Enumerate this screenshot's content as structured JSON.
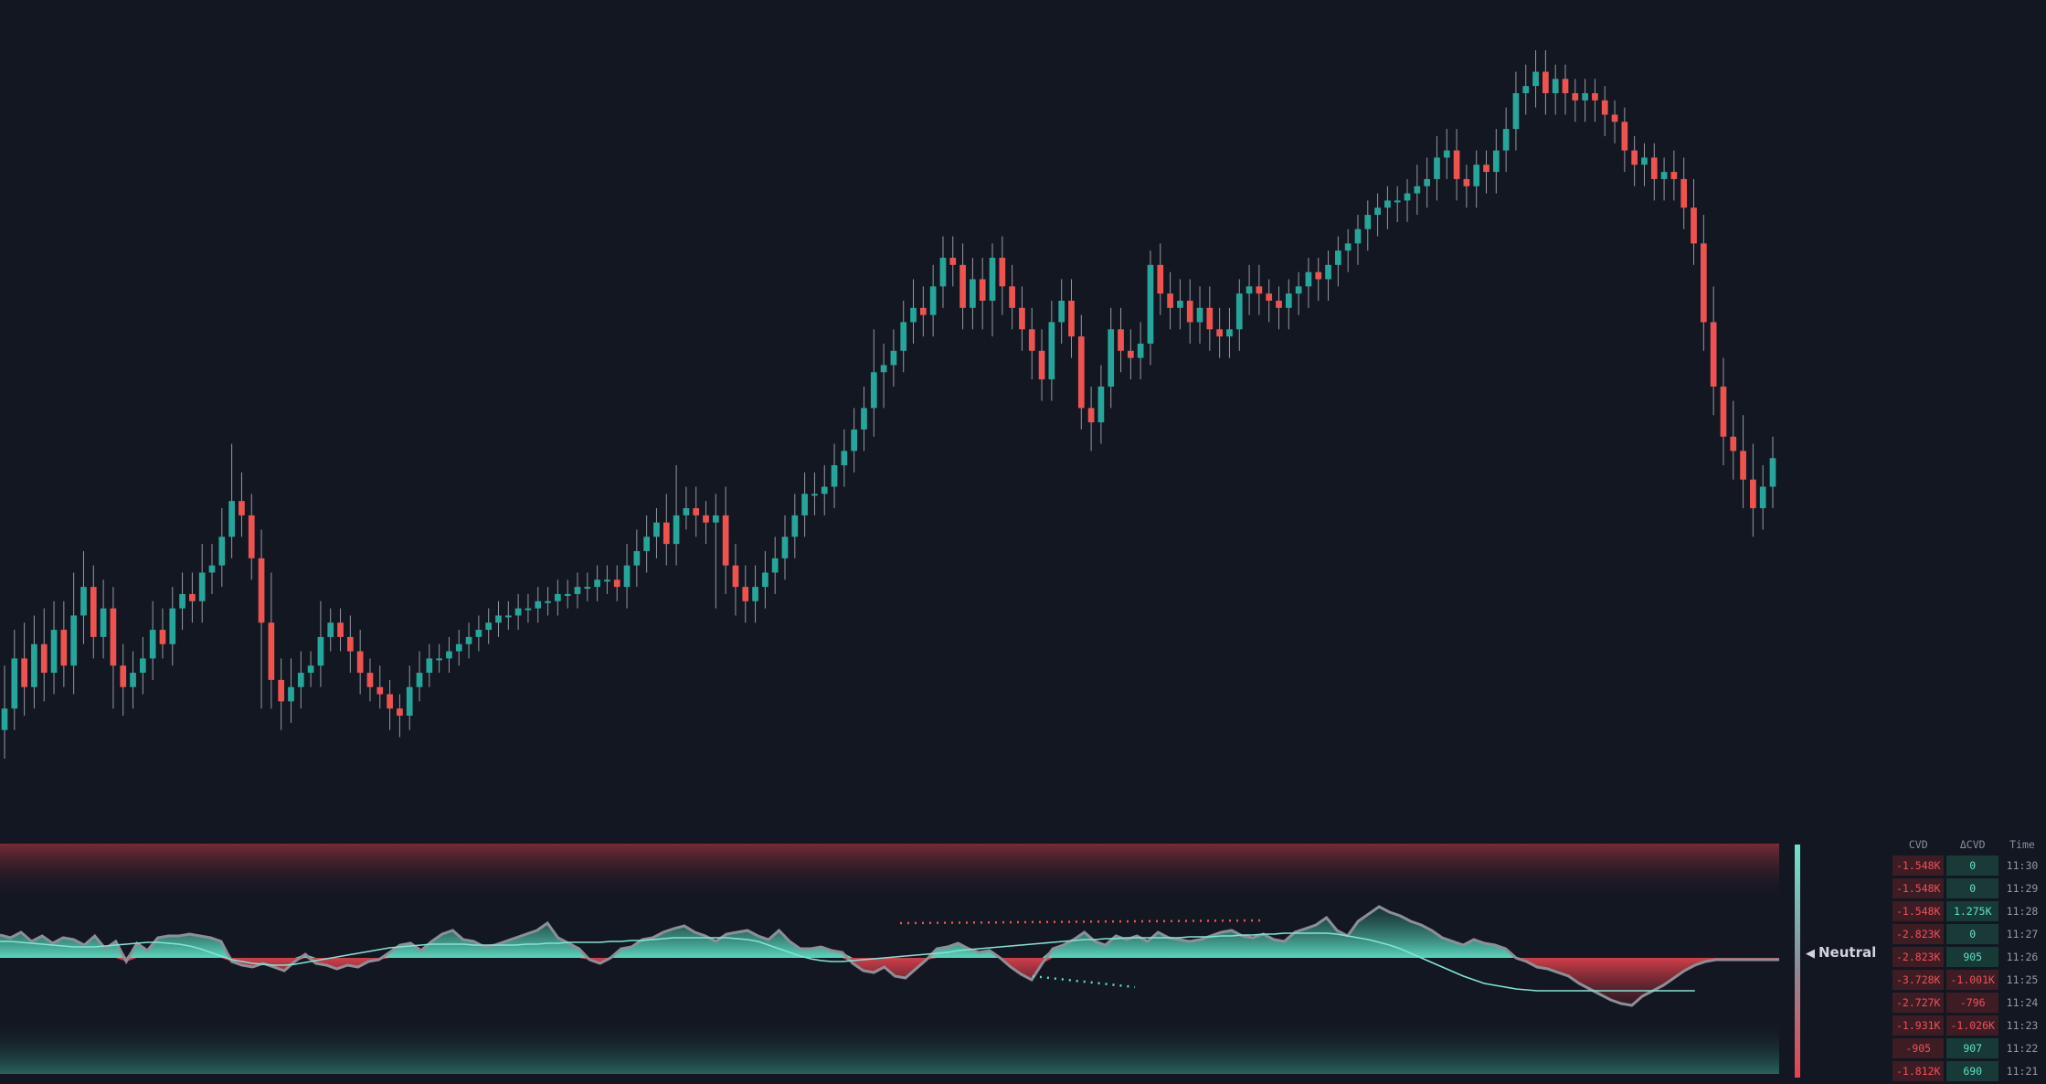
{
  "colors": {
    "background": "#131722",
    "up": "#26a69a",
    "down": "#ef5350",
    "wick": "#9598a1",
    "osc_line": "#8d8f97",
    "signal_line": "#7fe6d3",
    "bull_fill": "#5fe0c6",
    "bear_fill": "#e8424f"
  },
  "indicator": {
    "sentiment_label": "Neutral",
    "sentiment_arrow": "◀"
  },
  "table": {
    "headers": {
      "cvd": "CVD",
      "dcvd": "ΔCVD",
      "time": "Time"
    },
    "rows": [
      {
        "cvd": "-1.548K",
        "dcvd": "0",
        "time": "11:30",
        "cvd_sign": "neg",
        "dcvd_sign": "zero"
      },
      {
        "cvd": "-1.548K",
        "dcvd": "0",
        "time": "11:29",
        "cvd_sign": "neg",
        "dcvd_sign": "zero"
      },
      {
        "cvd": "-1.548K",
        "dcvd": "1.275K",
        "time": "11:28",
        "cvd_sign": "neg",
        "dcvd_sign": "pos"
      },
      {
        "cvd": "-2.823K",
        "dcvd": "0",
        "time": "11:27",
        "cvd_sign": "neg",
        "dcvd_sign": "zero"
      },
      {
        "cvd": "-2.823K",
        "dcvd": "905",
        "time": "11:26",
        "cvd_sign": "neg",
        "dcvd_sign": "pos"
      },
      {
        "cvd": "-3.728K",
        "dcvd": "-1.001K",
        "time": "11:25",
        "cvd_sign": "neg",
        "dcvd_sign": "neg"
      },
      {
        "cvd": "-2.727K",
        "dcvd": "-796",
        "time": "11:24",
        "cvd_sign": "neg",
        "dcvd_sign": "neg"
      },
      {
        "cvd": "-1.931K",
        "dcvd": "-1.026K",
        "time": "11:23",
        "cvd_sign": "neg",
        "dcvd_sign": "neg"
      },
      {
        "cvd": "-905",
        "dcvd": "907",
        "time": "11:22",
        "cvd_sign": "neg",
        "dcvd_sign": "pos"
      },
      {
        "cvd": "-1.812K",
        "dcvd": "690",
        "time": "11:21",
        "cvd_sign": "neg",
        "dcvd_sign": "pos"
      }
    ]
  },
  "chart_data": [
    {
      "type": "candlestick",
      "title": "",
      "grid": false,
      "ylim": [
        0,
        100
      ],
      "close": [
        30,
        37,
        33,
        39,
        35,
        41,
        36,
        43,
        47,
        40,
        44,
        36,
        33,
        35,
        37,
        41,
        39,
        44,
        46,
        45,
        49,
        50,
        54,
        59,
        57,
        51,
        42,
        34,
        31,
        33,
        35,
        36,
        40,
        42,
        40,
        38,
        35,
        33,
        32,
        30,
        29,
        33,
        35,
        37,
        37,
        38,
        39,
        40,
        41,
        42,
        43,
        43,
        44,
        44,
        45,
        45,
        46,
        46,
        47,
        47,
        48,
        48,
        47,
        50,
        52,
        54,
        56,
        53,
        57,
        58,
        57,
        56,
        57,
        50,
        47,
        45,
        47,
        49,
        51,
        54,
        57,
        60,
        60,
        61,
        64,
        66,
        69,
        72,
        77,
        78,
        80,
        84,
        86,
        85,
        89,
        93,
        92,
        86,
        90,
        87,
        93,
        89,
        86,
        83,
        80,
        76,
        84,
        87,
        82,
        72,
        70,
        75,
        83,
        80,
        79,
        81,
        92,
        88,
        86,
        87,
        84,
        86,
        83,
        82,
        83,
        88,
        89,
        88,
        87,
        86,
        88,
        89,
        91,
        90,
        92,
        94,
        95,
        97,
        99,
        100,
        101,
        101,
        102,
        103,
        104,
        107,
        108,
        104,
        103,
        106,
        105,
        108,
        111,
        116,
        117,
        119,
        116,
        118,
        116,
        115,
        116,
        115,
        113,
        112,
        108,
        106,
        107,
        104,
        105,
        104,
        100,
        95,
        84,
        75,
        68,
        66,
        62,
        58,
        61,
        65
      ],
      "high_extra": [
        6,
        4,
        5,
        4,
        5,
        4,
        4,
        6,
        5,
        3,
        4,
        3,
        3,
        3,
        3,
        4,
        3,
        3,
        3,
        3,
        4,
        3,
        4,
        8,
        4,
        3,
        4,
        7,
        3,
        4,
        3,
        2,
        5,
        2,
        2,
        3,
        3,
        2,
        3,
        2,
        2,
        3,
        3,
        2,
        2,
        2,
        2,
        2,
        2,
        2,
        2,
        2,
        2,
        2,
        2,
        2,
        2,
        2,
        2,
        2,
        2,
        2,
        2,
        3,
        3,
        3,
        2,
        4,
        7,
        3,
        3,
        2,
        3,
        4,
        3,
        3,
        3,
        3,
        3,
        3,
        3,
        3,
        3,
        3,
        3,
        3,
        3,
        3,
        6,
        3,
        3,
        3,
        4,
        3,
        3,
        3,
        3,
        3,
        3,
        3,
        2,
        3,
        3,
        3,
        3,
        3,
        3,
        3,
        3,
        3,
        3,
        3,
        3,
        3,
        3,
        3,
        2,
        3,
        3,
        3,
        3,
        3,
        3,
        3,
        3,
        2,
        3,
        3,
        2,
        2,
        2,
        2,
        2,
        2,
        2,
        2,
        2,
        2,
        2,
        2,
        2,
        2,
        2,
        3,
        3,
        3,
        3,
        3,
        2,
        2,
        2,
        3,
        3,
        3,
        3,
        3,
        3,
        2,
        2,
        2,
        2,
        2,
        2,
        2,
        2,
        2,
        2,
        2,
        2,
        3,
        3,
        4,
        4,
        5,
        4,
        5,
        5,
        5,
        3,
        3
      ],
      "low_extra": [
        4,
        3,
        4,
        3,
        4,
        3,
        3,
        4,
        4,
        3,
        3,
        6,
        4,
        3,
        3,
        3,
        2,
        3,
        3,
        3,
        3,
        3,
        3,
        3,
        3,
        3,
        12,
        4,
        4,
        3,
        3,
        2,
        3,
        2,
        2,
        3,
        3,
        2,
        2,
        3,
        3,
        2,
        2,
        2,
        2,
        2,
        2,
        2,
        2,
        2,
        2,
        2,
        2,
        2,
        2,
        2,
        2,
        2,
        2,
        2,
        2,
        2,
        2,
        3,
        3,
        3,
        3,
        3,
        3,
        2,
        3,
        3,
        12,
        4,
        4,
        3,
        3,
        3,
        3,
        3,
        3,
        3,
        3,
        3,
        3,
        3,
        3,
        3,
        4,
        5,
        3,
        3,
        3,
        3,
        3,
        3,
        3,
        3,
        3,
        4,
        5,
        4,
        3,
        3,
        4,
        3,
        3,
        3,
        3,
        3,
        4,
        3,
        3,
        3,
        3,
        3,
        3,
        3,
        3,
        3,
        3,
        3,
        3,
        3,
        3,
        3,
        3,
        3,
        3,
        3,
        3,
        3,
        3,
        3,
        3,
        3,
        3,
        3,
        3,
        3,
        3,
        3,
        3,
        3,
        3,
        3,
        3,
        3,
        3,
        3,
        3,
        3,
        3,
        3,
        3,
        3,
        3,
        3,
        3,
        3,
        3,
        3,
        3,
        3,
        3,
        3,
        3,
        3,
        3,
        3,
        3,
        3,
        4,
        4,
        4,
        4,
        4,
        4,
        3,
        3
      ]
    },
    {
      "type": "area",
      "title": "",
      "ylim": [
        -100,
        100
      ],
      "series": [
        {
          "values": [
            25,
            22,
            28,
            18,
            24,
            16,
            22,
            20,
            14,
            24,
            10,
            18,
            -4,
            16,
            8,
            22,
            24,
            24,
            26,
            24,
            22,
            18,
            -4,
            -8,
            -10,
            -6,
            -10,
            -14,
            -4,
            4,
            -6,
            -8,
            -12,
            -8,
            -10,
            -4,
            -2,
            6,
            14,
            16,
            8,
            18,
            26,
            30,
            20,
            18,
            12,
            14,
            18,
            22,
            26,
            30,
            38,
            22,
            16,
            10,
            -2,
            -6,
            0,
            10,
            12,
            20,
            22,
            28,
            32,
            35,
            28,
            24,
            18,
            26,
            28,
            30,
            24,
            20,
            30,
            18,
            10,
            10,
            12,
            8,
            6,
            -6,
            -14,
            -16,
            -10,
            -20,
            -22,
            -12,
            -2,
            10,
            12,
            16,
            10,
            6,
            8,
            0,
            -10,
            -18,
            -24,
            -6,
            10,
            14,
            20,
            28,
            18,
            14,
            24,
            20,
            24,
            18,
            28,
            22,
            20,
            18,
            20,
            24,
            28,
            30,
            24,
            22,
            26,
            20,
            18,
            28,
            32,
            36,
            44,
            30,
            24,
            40,
            48,
            56,
            50,
            46,
            40,
            36,
            30,
            22,
            18,
            14,
            20,
            16,
            14,
            10,
            0,
            -4,
            -10,
            -12,
            -16,
            -20,
            -28,
            -34,
            -40,
            -46,
            -50,
            -52,
            -42,
            -36,
            -30,
            -22,
            -14,
            -8,
            -4,
            -2,
            -2,
            -2,
            -2,
            -2,
            -2,
            -2
          ]
        },
        {
          "values": [
            18,
            18,
            17,
            16,
            15,
            14,
            13,
            12,
            12,
            12,
            13,
            14,
            15,
            16,
            17,
            17,
            16,
            15,
            13,
            10,
            6,
            2,
            -2,
            -4,
            -6,
            -7,
            -8,
            -8,
            -7,
            -5,
            -3,
            -1,
            1,
            3,
            5,
            7,
            9,
            11,
            12,
            13,
            14,
            15,
            15,
            15,
            15,
            14,
            14,
            14,
            14,
            14,
            15,
            15,
            16,
            16,
            17,
            17,
            17,
            17,
            18,
            18,
            19,
            19,
            20,
            21,
            22,
            22,
            22,
            22,
            22,
            22,
            21,
            20,
            18,
            14,
            10,
            6,
            2,
            -1,
            -3,
            -4,
            -4,
            -3,
            -2,
            -1,
            0,
            1,
            2,
            3,
            4,
            5,
            6,
            8,
            9,
            10,
            11,
            12,
            13,
            14,
            15,
            16,
            17,
            18,
            19,
            20,
            20,
            21,
            21,
            22,
            22,
            22,
            22,
            22,
            22,
            23,
            23,
            23,
            24,
            24,
            25,
            25,
            26,
            26,
            27,
            27,
            27,
            27,
            27,
            26,
            24,
            22,
            20,
            17,
            14,
            10,
            5,
            0,
            -5,
            -10,
            -15,
            -20,
            -24,
            -28,
            -30,
            -32,
            -34,
            -35,
            -36,
            -36,
            -36,
            -36,
            -36,
            -36,
            -36,
            -36,
            -36,
            -36,
            -36,
            -36,
            -36,
            -36,
            -36,
            -36
          ]
        }
      ]
    }
  ]
}
